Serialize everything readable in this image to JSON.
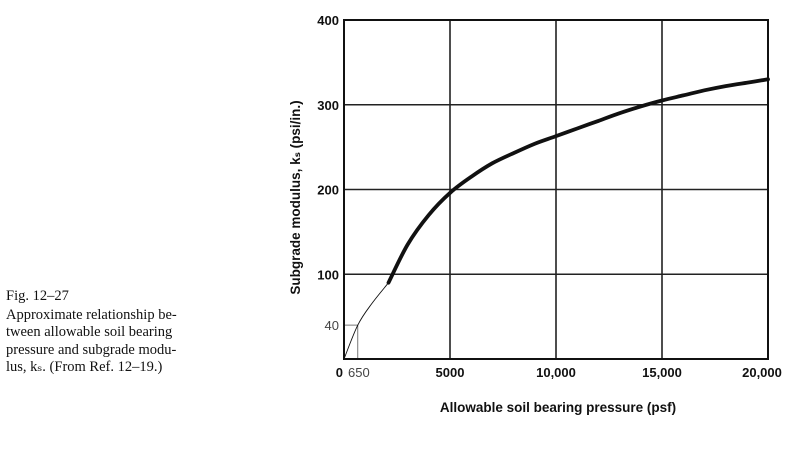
{
  "caption": {
    "figure_label": "Fig. 12–27",
    "lines": [
      "Approximate relationship be-",
      "tween allowable soil bearing",
      "pressure and subgrade modu-",
      "lus, kₛ. (From Ref. 12–19.)"
    ]
  },
  "chart_data": {
    "type": "line",
    "xlabel": "Allowable soil bearing pressure (psf)",
    "ylabel": "Subgrade modulus, kₛ (psi/in.)",
    "xlim": [
      0,
      20000
    ],
    "ylim": [
      0,
      400
    ],
    "grid": true,
    "x_ticks": [
      {
        "value": 0,
        "label": "0"
      },
      {
        "value": 650,
        "label": "650"
      },
      {
        "value": 5000,
        "label": "5000"
      },
      {
        "value": 10000,
        "label": "10,000"
      },
      {
        "value": 15000,
        "label": "15,000"
      },
      {
        "value": 20000,
        "label": "20,000"
      }
    ],
    "y_ticks": [
      {
        "value": 40,
        "label": "40"
      },
      {
        "value": 100,
        "label": "100"
      },
      {
        "value": 200,
        "label": "200"
      },
      {
        "value": 300,
        "label": "300"
      },
      {
        "value": 400,
        "label": "400"
      }
    ],
    "grid_x": [
      5000,
      10000,
      15000,
      20000
    ],
    "grid_y": [
      100,
      200,
      300,
      400
    ],
    "reference_box": {
      "x": 650,
      "y": 40
    },
    "series": [
      {
        "style": "thin",
        "x": [
          0,
          650,
          1300,
          2100
        ],
        "y": [
          0,
          40,
          65,
          90
        ]
      },
      {
        "style": "thick",
        "x": [
          2100,
          3000,
          4000,
          5000,
          6000,
          7000,
          8000,
          9000,
          10000,
          11000,
          12000,
          13000,
          14000,
          15000,
          16000,
          17000,
          18000,
          19000,
          20000
        ],
        "y": [
          90,
          135,
          170,
          196,
          215,
          231,
          243,
          254,
          263,
          272,
          281,
          290,
          298,
          305,
          311,
          317,
          322,
          326,
          330
        ]
      }
    ]
  },
  "colors": {
    "ink": "#111111",
    "grid": "#222222"
  }
}
